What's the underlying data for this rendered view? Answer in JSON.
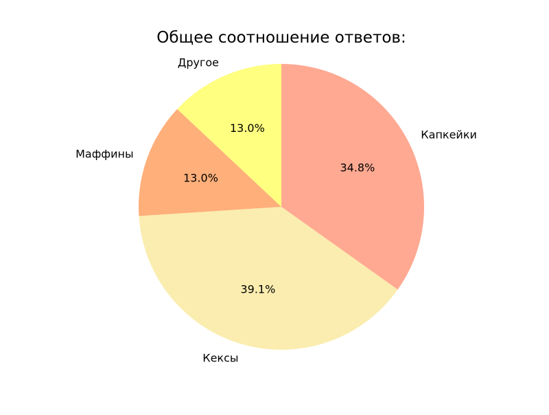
{
  "chart_data": {
    "type": "pie",
    "title": "Общее соотношение ответов:",
    "slices": [
      {
        "label": "Капкейки",
        "value": 34.8,
        "percent_label": "34.8%",
        "color": "#FFA992"
      },
      {
        "label": "Кексы",
        "value": 39.1,
        "percent_label": "39.1%",
        "color": "#FAEDAF"
      },
      {
        "label": "Маффины",
        "value": 13.0,
        "percent_label": "13.0%",
        "color": "#FFAF7A"
      },
      {
        "label": "Другое",
        "value": 13.0,
        "percent_label": "13.0%",
        "color": "#FFFF80"
      }
    ],
    "start_angle_deg": 90,
    "direction": "clockwise",
    "legend": "none"
  }
}
